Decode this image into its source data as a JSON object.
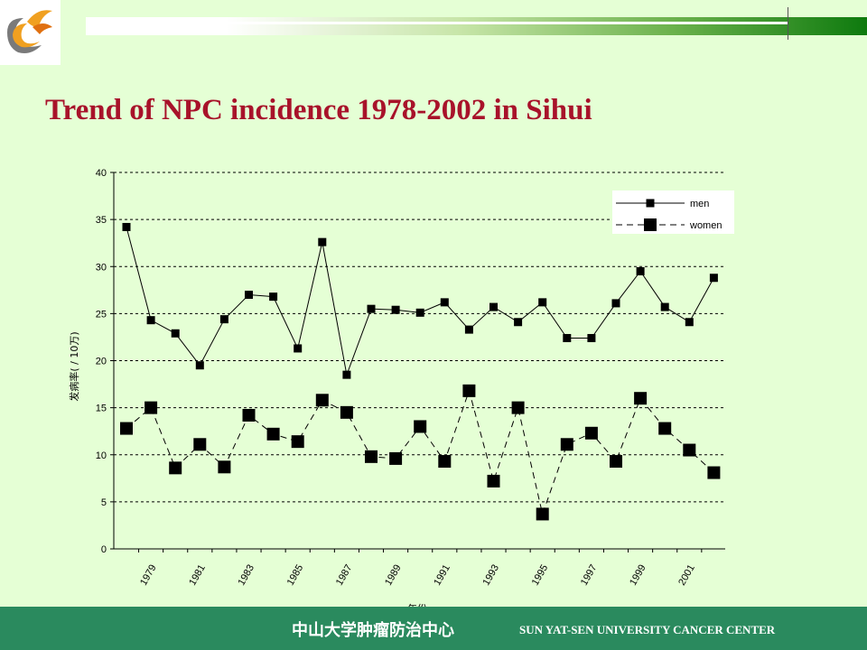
{
  "slide": {
    "title": "Trend of NPC incidence 1978-2002 in Sihui",
    "footer_cn": "中山大学肿瘤防治中心",
    "footer_en": "SUN YAT-SEN UNIVERSITY CANCER CENTER"
  },
  "colors": {
    "background": "#e5ffd5",
    "title": "#a8122a",
    "footer": "#2a8a5e"
  },
  "icons": [
    "logo-icon"
  ],
  "chart_data": {
    "type": "line",
    "title": "",
    "xlabel": "年份",
    "ylabel": "发病率( / 10万)",
    "ylim": [
      0,
      40
    ],
    "yticks": [
      0,
      5,
      10,
      15,
      20,
      25,
      30,
      35,
      40
    ],
    "grid": true,
    "legend_position": "top-right",
    "x": [
      1978,
      1979,
      1980,
      1981,
      1982,
      1983,
      1984,
      1985,
      1986,
      1987,
      1988,
      1989,
      1990,
      1991,
      1992,
      1993,
      1994,
      1995,
      1996,
      1997,
      1998,
      1999,
      2000,
      2001,
      2002
    ],
    "xtick_labels": [
      "1979",
      "1981",
      "1983",
      "1985",
      "1987",
      "1989",
      "1991",
      "1993",
      "1995",
      "1997",
      "1999",
      "2001"
    ],
    "series": [
      {
        "name": "men",
        "style": "solid",
        "values": [
          34.2,
          24.3,
          22.9,
          19.5,
          24.4,
          27.0,
          26.8,
          21.3,
          32.6,
          18.5,
          25.5,
          25.4,
          25.1,
          26.2,
          23.3,
          25.7,
          24.1,
          26.2,
          22.4,
          22.4,
          26.1,
          29.5,
          25.7,
          24.1,
          28.8
        ]
      },
      {
        "name": "women",
        "style": "dashed",
        "values": [
          12.8,
          15.0,
          8.6,
          11.1,
          8.7,
          14.2,
          12.2,
          11.4,
          15.8,
          14.5,
          9.8,
          9.6,
          13.0,
          9.3,
          16.8,
          7.2,
          15.0,
          3.7,
          11.1,
          12.3,
          9.3,
          16.0,
          12.8,
          10.5,
          8.1
        ]
      }
    ]
  }
}
